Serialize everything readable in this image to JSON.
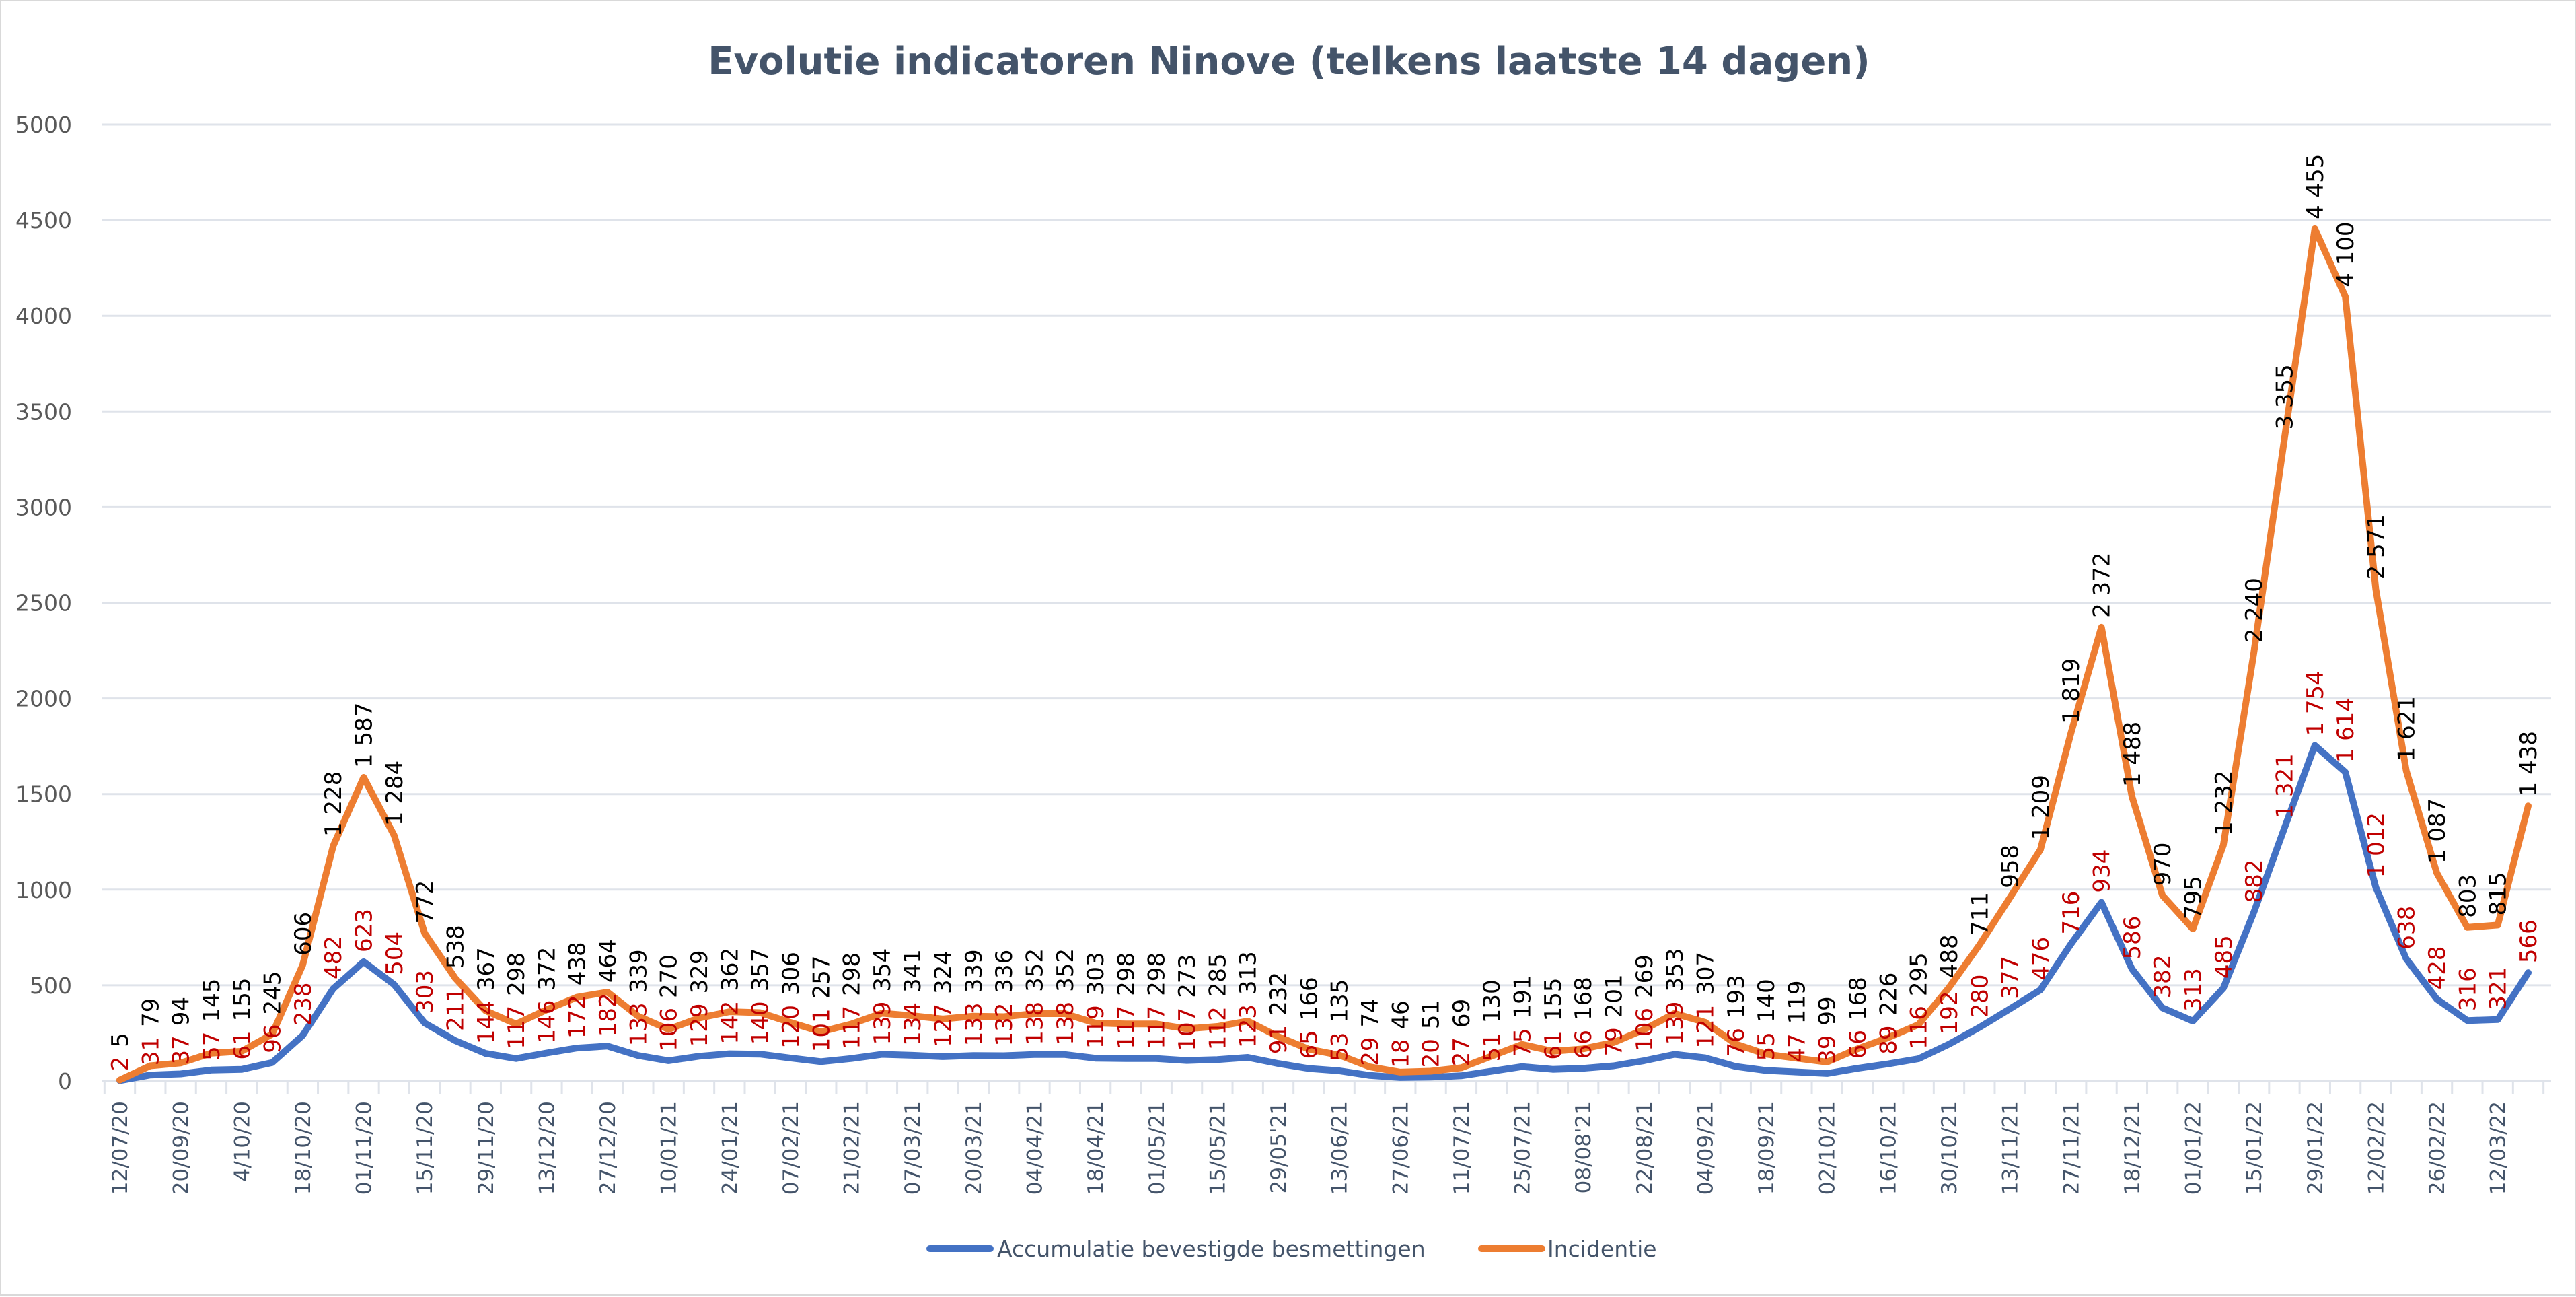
{
  "chart_data": {
    "type": "line",
    "title": "Evolutie indicatoren Ninove (telkens laatste 14 dagen)",
    "xlabel": "",
    "ylabel": "",
    "ylim": [
      0,
      5000
    ],
    "yticks": [
      0,
      500,
      1000,
      1500,
      2000,
      2500,
      3000,
      3500,
      4000,
      4500,
      5000
    ],
    "grid": true,
    "legend_position": "bottom",
    "x_tick_labels": [
      "12/07/20",
      "20/09/20",
      "4/10/20",
      "18/10/20",
      "01/11/20",
      "15/11/20",
      "29/11/20",
      "13/12/20",
      "27/12/20",
      "10/01/21",
      "24/01/21",
      "07/02/21",
      "21/02/21",
      "07/03/21",
      "20/03/21",
      "04/04/21",
      "18/04/21",
      "01/05/21",
      "15/05/21",
      "29/05'21",
      "13/06/21",
      "27/06/21",
      "11/07/21",
      "25/07/21",
      "08/08'21",
      "22/08/21",
      "04/09/21",
      "18/09/21",
      "02/10/21",
      "16/10/21",
      "30/10/21",
      "13/11/21",
      "27/11/21",
      "18/12/21",
      "01/01/22",
      "15/01/22",
      "29/01/22",
      "12/02/22",
      "26/02/22",
      "12/03/22"
    ],
    "series": [
      {
        "name": "Accumulatie bevestigde besmettingen",
        "color": "#4472c4",
        "label_color": "#c00000",
        "values": [
          2,
          31,
          37,
          57,
          61,
          96,
          238,
          482,
          623,
          504,
          303,
          211,
          144,
          117,
          146,
          172,
          182,
          133,
          106,
          129,
          142,
          140,
          120,
          101,
          117,
          139,
          134,
          127,
          133,
          132,
          138,
          138,
          119,
          117,
          117,
          107,
          112,
          123,
          91,
          65,
          53,
          29,
          18,
          20,
          27,
          51,
          75,
          61,
          66,
          79,
          106,
          139,
          121,
          76,
          55,
          47,
          39,
          66,
          89,
          116,
          192,
          280,
          377,
          476,
          716,
          934,
          586,
          382,
          313,
          485,
          882,
          1321,
          1754,
          1614,
          1012,
          638,
          428,
          316,
          321,
          566
        ]
      },
      {
        "name": "Incidentie",
        "color": "#ed7d31",
        "label_color": "#000000",
        "values": [
          5,
          79,
          94,
          145,
          155,
          245,
          606,
          1228,
          1587,
          1284,
          772,
          538,
          367,
          298,
          372,
          438,
          464,
          339,
          270,
          329,
          362,
          357,
          306,
          257,
          298,
          354,
          341,
          324,
          339,
          336,
          352,
          352,
          303,
          298,
          298,
          273,
          285,
          313,
          232,
          166,
          135,
          74,
          46,
          51,
          69,
          130,
          191,
          155,
          168,
          201,
          269,
          353,
          307,
          193,
          140,
          119,
          99,
          168,
          226,
          295,
          488,
          711,
          958,
          1209,
          1819,
          2372,
          1488,
          970,
          795,
          1232,
          2240,
          3355,
          4455,
          4100,
          2571,
          1621,
          1087,
          803,
          815,
          1438
        ]
      }
    ]
  }
}
